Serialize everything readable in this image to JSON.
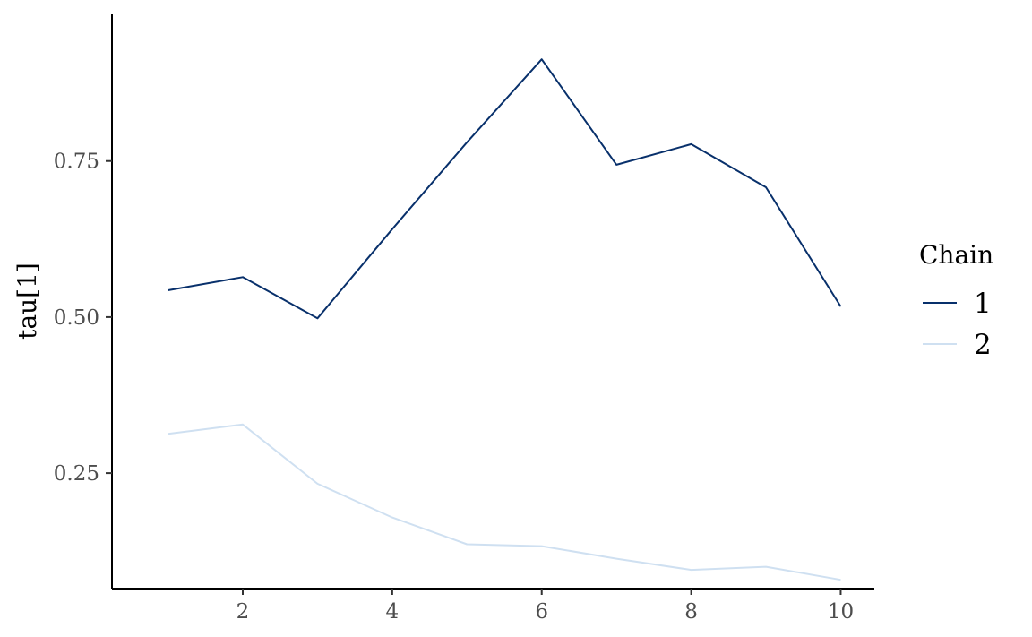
{
  "chart_data": {
    "type": "line",
    "title": "",
    "xlabel": "",
    "ylabel": "tau[1]",
    "xlim": [
      0.25,
      10.45
    ],
    "ylim": [
      0.065,
      0.985
    ],
    "x_ticks": [
      2,
      4,
      6,
      8,
      10
    ],
    "y_ticks": [
      0.25,
      0.5,
      0.75
    ],
    "x_tick_labels": [
      "2",
      "4",
      "6",
      "8",
      "10"
    ],
    "y_tick_labels": [
      "0.25",
      "0.50",
      "0.75"
    ],
    "grid": false,
    "legend": {
      "title": "Chain",
      "position": "right"
    },
    "x": [
      1,
      2,
      3,
      4,
      5,
      6,
      7,
      8,
      9,
      10
    ],
    "series": [
      {
        "name": "1",
        "color": "#08306b",
        "values": [
          0.543,
          0.564,
          0.498,
          0.641,
          0.78,
          0.913,
          0.744,
          0.777,
          0.708,
          0.517
        ]
      },
      {
        "name": "2",
        "color": "#cfe0f1",
        "values": [
          0.313,
          0.328,
          0.233,
          0.179,
          0.136,
          0.133,
          0.113,
          0.095,
          0.1,
          0.079
        ]
      }
    ]
  }
}
